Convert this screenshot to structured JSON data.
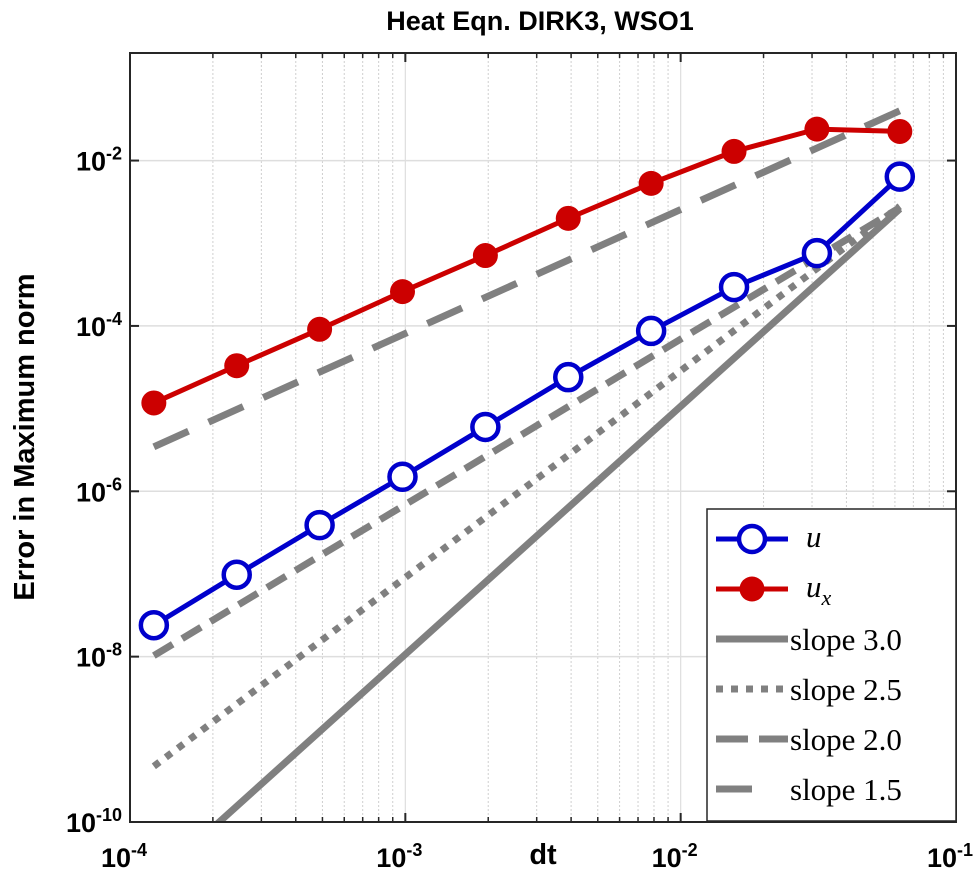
{
  "chart_data": {
    "type": "line",
    "title": "Heat Eqn. DIRK3, WSO1",
    "xlabel": "dt",
    "ylabel": "Error in Maximum norm",
    "xscale": "log",
    "yscale": "log",
    "xlim": [
      0.0001,
      0.1
    ],
    "ylim": [
      1e-10,
      0.2
    ],
    "grid": true,
    "legend_position": "bottom-right",
    "x_ticks": [
      {
        "base": "10",
        "exp": "-4",
        "value": 0.0001
      },
      {
        "base": "10",
        "exp": "-3",
        "value": 0.001
      },
      {
        "base": "10",
        "exp": "-2",
        "value": 0.01
      },
      {
        "base": "10",
        "exp": "-1",
        "value": 0.1
      }
    ],
    "y_ticks": [
      {
        "base": "10",
        "exp": "-10",
        "value": 1e-10
      },
      {
        "base": "10",
        "exp": "-8",
        "value": 1e-08
      },
      {
        "base": "10",
        "exp": "-6",
        "value": 1e-06
      },
      {
        "base": "10",
        "exp": "-4",
        "value": 0.0001
      },
      {
        "base": "10",
        "exp": "-2",
        "value": 0.01
      }
    ],
    "x": [
      0.0001220703125,
      0.000244140625,
      0.00048828125,
      0.0009765625,
      0.001953125,
      0.00390625,
      0.0078125,
      0.015625,
      0.03125,
      0.0625
    ],
    "series": [
      {
        "name": "u",
        "name_sub": "",
        "color": "#0000cc",
        "marker": "open-circle",
        "style": "solid",
        "values": [
          2.4e-08,
          9.8e-08,
          3.9e-07,
          1.5e-06,
          6e-06,
          2.4e-05,
          8.7e-05,
          0.000295,
          0.00076,
          0.0064
        ]
      },
      {
        "name": "u",
        "name_sub": "x",
        "color": "#cc0000",
        "marker": "filled-circle",
        "style": "solid",
        "values": [
          1.17e-05,
          3.3e-05,
          9.1e-05,
          0.00026,
          0.00071,
          0.002,
          0.0053,
          0.0129,
          0.024,
          0.0225
        ]
      }
    ],
    "reference_lines": [
      {
        "name": "slope 3.0",
        "slope": 3.0,
        "style": "solid",
        "color": "#808080",
        "x_range": [
          0.0001220703125,
          0.0625
        ],
        "y_at_end": 0.0026
      },
      {
        "name": "slope 2.5",
        "slope": 2.5,
        "style": "dotted",
        "color": "#808080",
        "x_range": [
          0.0001220703125,
          0.0625
        ],
        "y_at_end": 0.0028
      },
      {
        "name": "slope 2.0",
        "slope": 2.0,
        "style": "dashed",
        "color": "#808080",
        "x_range": [
          0.0001220703125,
          0.0625
        ],
        "y_at_end": 0.0027
      },
      {
        "name": "slope 1.5",
        "slope": 1.5,
        "style": "long-dashed",
        "color": "#808080",
        "x_range": [
          0.0001220703125,
          0.0625
        ],
        "y_at_end": 0.04
      }
    ]
  }
}
